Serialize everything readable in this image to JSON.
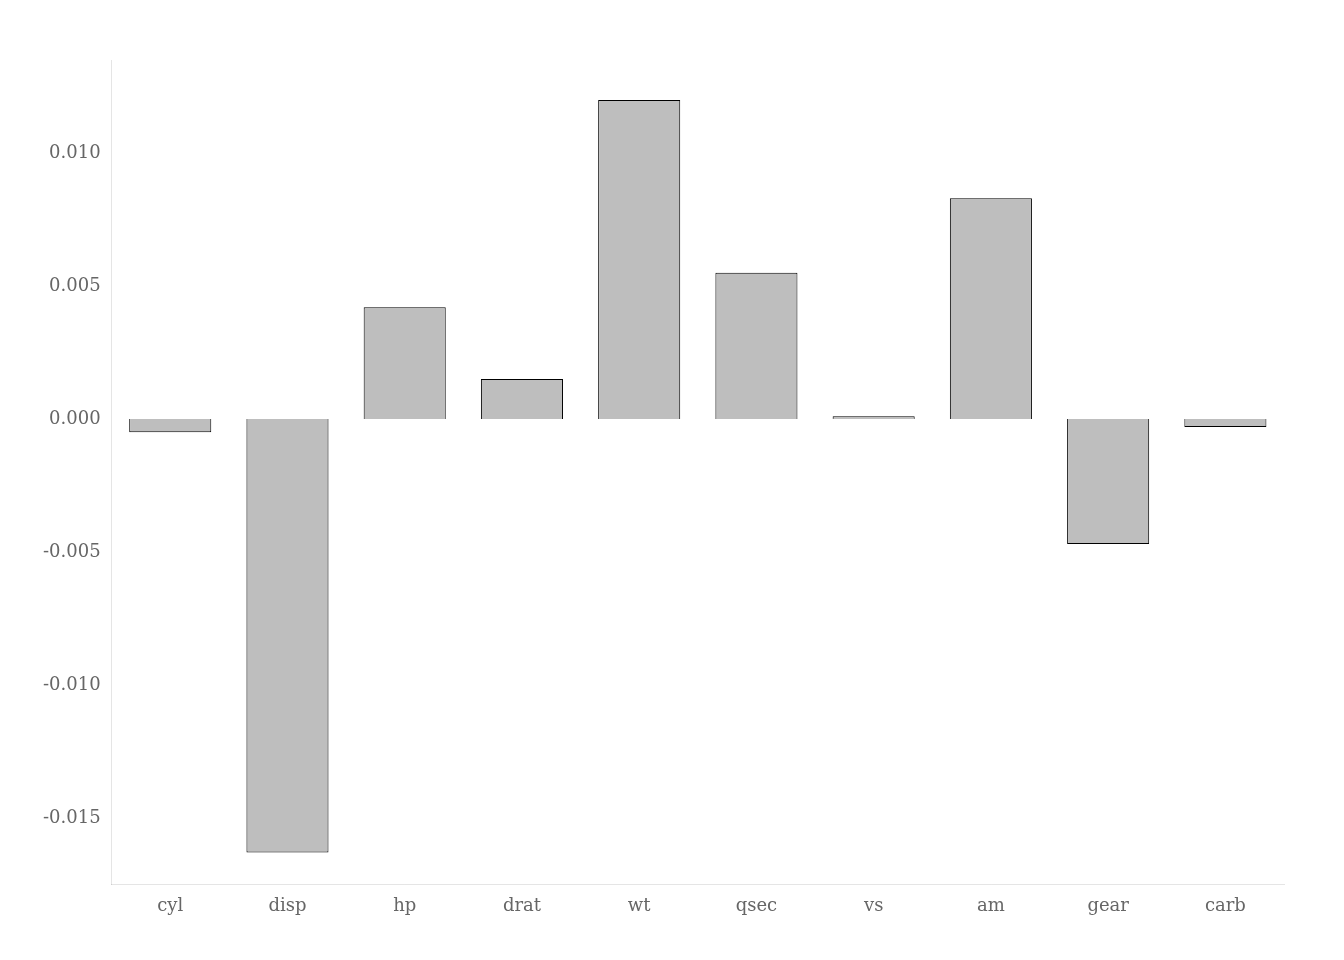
{
  "chart_data": {
    "type": "bar",
    "categories": [
      "cyl",
      "disp",
      "hp",
      "drat",
      "wt",
      "qsec",
      "vs",
      "am",
      "gear",
      "carb"
    ],
    "values": [
      -0.0005,
      -0.0163,
      0.0042,
      0.0015,
      0.012,
      0.0055,
      0.0001,
      0.0083,
      -0.0047,
      -0.0003
    ],
    "color": "#bebebe",
    "ylim": [
      -0.0175,
      0.0135
    ],
    "yticks": [
      -0.015,
      {
        "value": -0.01,
        "label": "-0.010"
      },
      -0.005,
      {
        "value": 0,
        "label": "0.000"
      },
      0.005,
      {
        "value": 0.01,
        "label": "0.010"
      }
    ],
    "grid": false
  }
}
